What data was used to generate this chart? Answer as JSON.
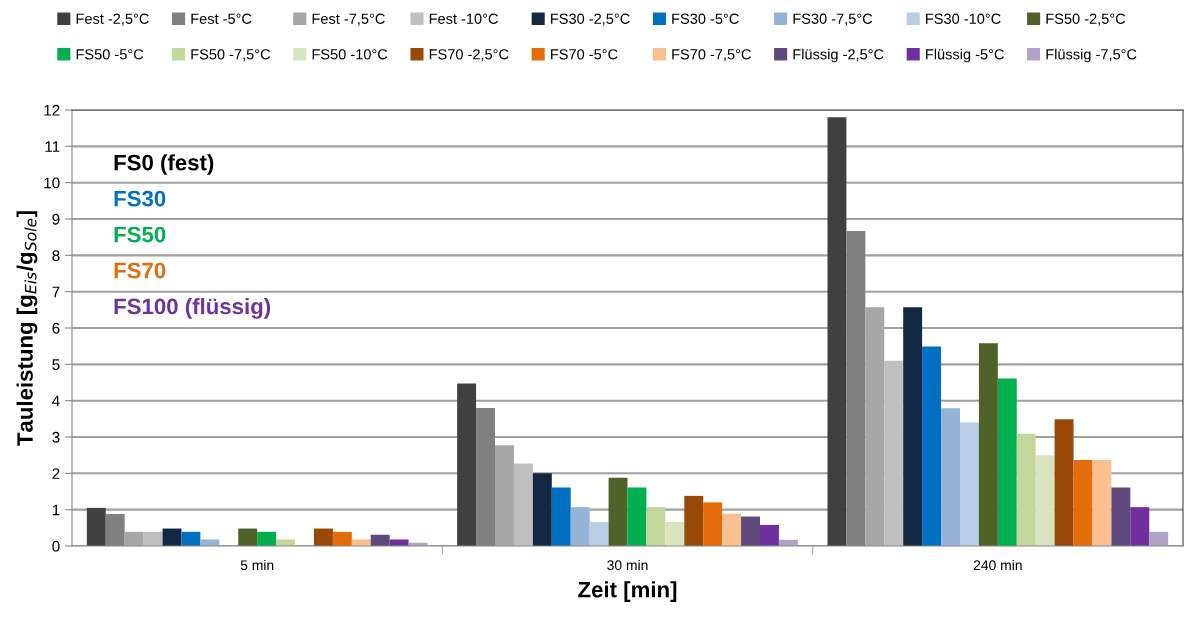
{
  "chart_data": {
    "type": "bar",
    "xlabel": "Zeit [min]",
    "ylabel": "Tauleistung [g$_{Eis}$/g$_{Sole}$]",
    "categories": [
      "5 min",
      "30 min",
      "240 min"
    ],
    "series": [
      {
        "name": "Fest -2,5°C",
        "color": "#404040",
        "values": [
          1.05,
          4.47,
          11.8
        ]
      },
      {
        "name": "Fest -5°C",
        "color": "#808080",
        "values": [
          0.88,
          3.8,
          8.67
        ]
      },
      {
        "name": "Fest -7,5°C",
        "color": "#a6a6a6",
        "values": [
          0.39,
          2.77,
          6.57
        ]
      },
      {
        "name": "Fest -10°C",
        "color": "#bfbfbf",
        "values": [
          0.39,
          2.27,
          5.1
        ]
      },
      {
        "name": "FS30 -2,5°C",
        "color": "#132843",
        "values": [
          0.48,
          2.0,
          6.57
        ]
      },
      {
        "name": "FS30 -5°C",
        "color": "#0070c0",
        "values": [
          0.39,
          1.61,
          5.49
        ]
      },
      {
        "name": "FS30 -7,5°C",
        "color": "#95b3d7",
        "values": [
          0.18,
          1.07,
          3.79
        ]
      },
      {
        "name": "FS30 -10°C",
        "color": "#b9cde5",
        "values": [
          null,
          0.66,
          3.4
        ]
      },
      {
        "name": "FS50 -2,5°C",
        "color": "#4f6228",
        "values": [
          0.48,
          1.88,
          5.58
        ]
      },
      {
        "name": "FS50 -5°C",
        "color": "#00b050",
        "values": [
          0.39,
          1.61,
          4.61
        ]
      },
      {
        "name": "FS50 -7,5°C",
        "color": "#c3d69b",
        "values": [
          0.18,
          1.07,
          3.09
        ]
      },
      {
        "name": "FS50 -10°C",
        "color": "#d7e4bd",
        "values": [
          null,
          0.66,
          2.5
        ]
      },
      {
        "name": "FS70 -2,5°C",
        "color": "#984807",
        "values": [
          0.48,
          1.38,
          3.49
        ]
      },
      {
        "name": "FS70 -5°C",
        "color": "#e46c0a",
        "values": [
          0.39,
          1.2,
          2.37
        ]
      },
      {
        "name": "FS70 -7,5°C",
        "color": "#fac090",
        "values": [
          0.18,
          0.89,
          2.37
        ]
      },
      {
        "name": "Flüssig -2,5°C",
        "color": "#604a7b",
        "values": [
          0.31,
          0.81,
          1.61
        ]
      },
      {
        "name": "Flüssig -5°C",
        "color": "#7030a0",
        "values": [
          0.18,
          0.58,
          1.07
        ]
      },
      {
        "name": "Flüssig -7,5°C",
        "color": "#b3a2c7",
        "values": [
          0.09,
          0.17,
          0.39
        ]
      }
    ],
    "ylim": [
      0,
      12
    ],
    "yticks": [
      0,
      1,
      2,
      3,
      4,
      5,
      6,
      7,
      8,
      9,
      10,
      11,
      12
    ],
    "grid": "y",
    "legend": "top",
    "annotations": [
      "FS0 (fest)",
      "FS30",
      "FS50",
      "FS70",
      "FS100 (flüssig)"
    ]
  }
}
